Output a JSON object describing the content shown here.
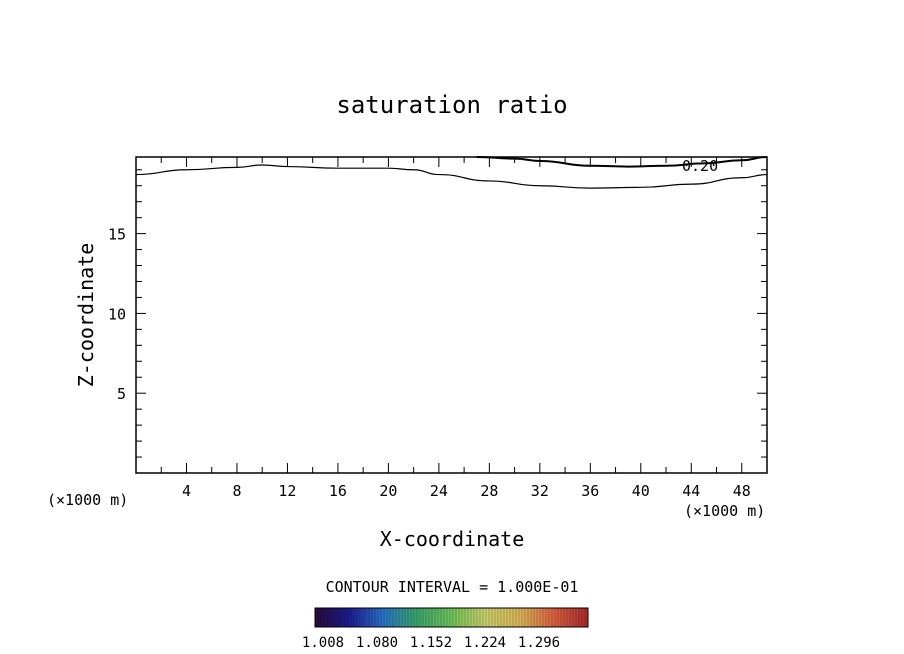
{
  "chart_data": {
    "type": "contour",
    "title": "saturation ratio",
    "xlabel": "X-coordinate",
    "ylabel": "Z-coordinate",
    "x_unit_left": "(×1000 m)",
    "x_unit_right": "(×1000 m)",
    "xlim": [
      0,
      50
    ],
    "ylim": [
      0,
      19.8
    ],
    "x_ticks": [
      4,
      8,
      12,
      16,
      20,
      24,
      28,
      32,
      36,
      40,
      44,
      48
    ],
    "y_ticks": [
      5,
      10,
      15
    ],
    "contour_label": "0.20",
    "contour_interval_text": "CONTOUR INTERVAL = 1.000E-01",
    "colorbar_ticks": [
      "1.008",
      "1.080",
      "1.152",
      "1.224",
      "1.296"
    ],
    "contours": [
      {
        "name": "lower",
        "points": [
          [
            0,
            18.7
          ],
          [
            4,
            19.0
          ],
          [
            8,
            19.15
          ],
          [
            10,
            19.3
          ],
          [
            12,
            19.2
          ],
          [
            16,
            19.1
          ],
          [
            20,
            19.1
          ],
          [
            22,
            19.0
          ],
          [
            24,
            18.7
          ],
          [
            28,
            18.3
          ],
          [
            32,
            18.0
          ],
          [
            36,
            17.85
          ],
          [
            40,
            17.9
          ],
          [
            44,
            18.1
          ],
          [
            48,
            18.5
          ],
          [
            50,
            18.7
          ]
        ]
      },
      {
        "name": "upper",
        "points": [
          [
            27,
            19.8
          ],
          [
            30,
            19.7
          ],
          [
            32,
            19.55
          ],
          [
            36,
            19.25
          ],
          [
            39,
            19.2
          ],
          [
            42,
            19.25
          ],
          [
            45,
            19.4
          ],
          [
            48,
            19.6
          ],
          [
            50,
            19.8
          ]
        ]
      }
    ]
  },
  "colors": {
    "line": "#000000",
    "colorbar_stops": [
      "#2a0a3a",
      "#1c1c8f",
      "#2a72c8",
      "#3aa56a",
      "#6fc25a",
      "#c8cf6a",
      "#d9b45a",
      "#d86040",
      "#a82a2a"
    ]
  }
}
